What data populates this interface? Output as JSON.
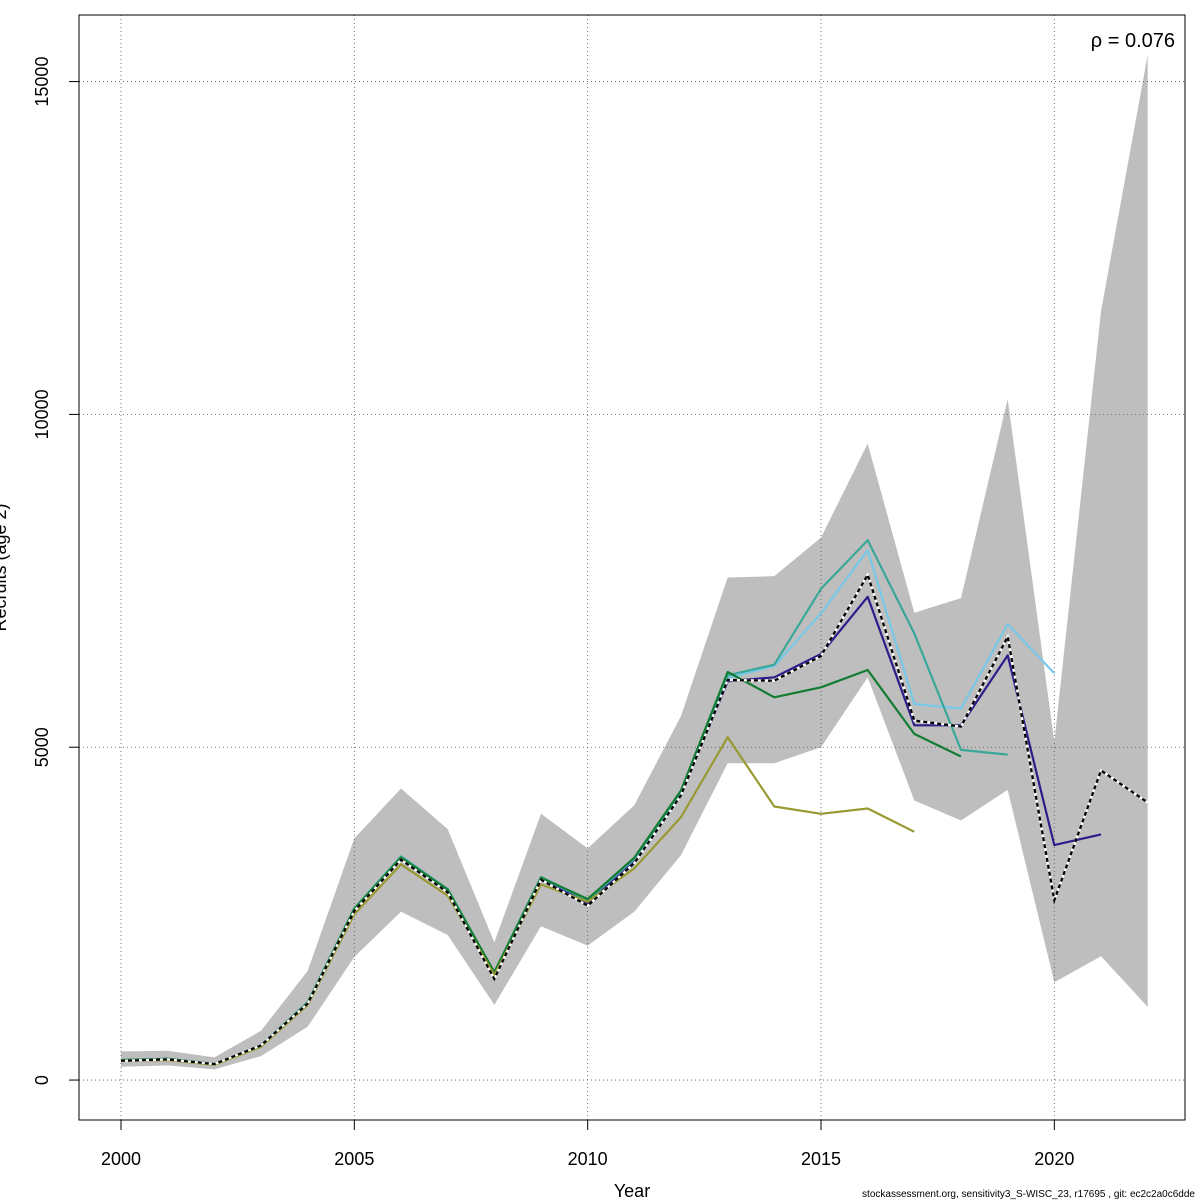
{
  "chart_data": {
    "type": "line",
    "title": "",
    "xlabel": "Year",
    "ylabel": "Recruits (age 2)",
    "xlim": [
      1999.1,
      2022.8
    ],
    "ylim": [
      -600,
      16000
    ],
    "x_ticks": [
      2000,
      2005,
      2010,
      2015,
      2020
    ],
    "y_ticks": [
      0,
      5000,
      10000,
      15000
    ],
    "grid": true,
    "annotation": {
      "symbol": "ρ",
      "text": "= 0.076"
    },
    "footer": "stockassessment.org, sensitivity3_S-WISC_23, r17695 , git: ec2c2a0c6dde",
    "band": {
      "name": "confidence band",
      "color": "#bebebe",
      "x": [
        2000,
        2001,
        2002,
        2003,
        2004,
        2005,
        2006,
        2007,
        2008,
        2009,
        2010,
        2011,
        2012,
        2013,
        2014,
        2015,
        2016,
        2017,
        2018,
        2019,
        2020,
        2021,
        2022
      ],
      "lower": [
        200,
        220,
        160,
        360,
        800,
        1850,
        2530,
        2180,
        1130,
        2310,
        2020,
        2530,
        3380,
        4760,
        4760,
        5000,
        6050,
        4200,
        3900,
        4360,
        1470,
        1860,
        1100
      ],
      "upper": [
        430,
        440,
        340,
        740,
        1640,
        3630,
        4380,
        3770,
        2070,
        4000,
        3480,
        4130,
        5470,
        7550,
        7570,
        8150,
        9560,
        7020,
        7240,
        10230,
        5080,
        11550,
        15400
      ]
    },
    "series": [
      {
        "name": "",
        "color": "#000000",
        "dashed": true,
        "x": [
          2000,
          2001,
          2002,
          2003,
          2004,
          2005,
          2006,
          2007,
          2008,
          2009,
          2010,
          2011,
          2012,
          2013,
          2014,
          2015,
          2016,
          2017,
          2018,
          2019,
          2020,
          2021,
          2022
        ],
        "y": [
          290,
          310,
          240,
          520,
          1150,
          2540,
          3310,
          2820,
          1520,
          3010,
          2620,
          3260,
          4280,
          6010,
          6000,
          6370,
          7590,
          5400,
          5310,
          6660,
          2700,
          4650,
          4170
        ]
      },
      {
        "name": "",
        "color": "#2c1d8a",
        "dashed": false,
        "x": [
          2000,
          2001,
          2002,
          2003,
          2004,
          2005,
          2006,
          2007,
          2008,
          2009,
          2010,
          2011,
          2012,
          2013,
          2014,
          2015,
          2016,
          2017,
          2018,
          2019,
          2020,
          2021
        ],
        "y": [
          300,
          320,
          240,
          520,
          1160,
          2560,
          3340,
          2850,
          1600,
          3020,
          2660,
          3280,
          4290,
          5990,
          6050,
          6400,
          7260,
          5330,
          5330,
          6380,
          3530,
          3690
        ]
      },
      {
        "name": "",
        "color": "#78c8e8",
        "dashed": false,
        "x": [
          2000,
          2001,
          2002,
          2003,
          2004,
          2005,
          2006,
          2007,
          2008,
          2009,
          2010,
          2011,
          2012,
          2013,
          2014,
          2015,
          2016,
          2017,
          2018,
          2019,
          2020
        ],
        "y": [
          300,
          320,
          240,
          520,
          1160,
          2570,
          3340,
          2860,
          1610,
          3040,
          2700,
          3320,
          4310,
          6040,
          6220,
          7010,
          7960,
          5650,
          5580,
          6850,
          6110
        ]
      },
      {
        "name": "",
        "color": "#3aa898",
        "dashed": false,
        "x": [
          2000,
          2001,
          2002,
          2003,
          2004,
          2005,
          2006,
          2007,
          2008,
          2009,
          2010,
          2011,
          2012,
          2013,
          2014,
          2015,
          2016,
          2017,
          2018,
          2019
        ],
        "y": [
          300,
          320,
          240,
          520,
          1170,
          2580,
          3360,
          2870,
          1620,
          3050,
          2700,
          3330,
          4320,
          6080,
          6240,
          7380,
          8110,
          6710,
          4960,
          4890
        ]
      },
      {
        "name": "",
        "color": "#137c33",
        "dashed": false,
        "x": [
          2000,
          2001,
          2002,
          2003,
          2004,
          2005,
          2006,
          2007,
          2008,
          2009,
          2010,
          2011,
          2012,
          2013,
          2014,
          2015,
          2016,
          2017,
          2018
        ],
        "y": [
          300,
          320,
          240,
          520,
          1160,
          2570,
          3340,
          2860,
          1620,
          3040,
          2720,
          3340,
          4350,
          6130,
          5750,
          5900,
          6160,
          5200,
          4860
        ]
      },
      {
        "name": "",
        "color": "#999933",
        "dashed": false,
        "x": [
          2000,
          2001,
          2002,
          2003,
          2004,
          2005,
          2006,
          2007,
          2008,
          2009,
          2010,
          2011,
          2012,
          2013,
          2014,
          2015,
          2016,
          2017
        ],
        "y": [
          290,
          300,
          230,
          500,
          1130,
          2490,
          3240,
          2770,
          1580,
          2940,
          2680,
          3180,
          3950,
          5150,
          4110,
          4000,
          4080,
          3730
        ]
      }
    ]
  }
}
